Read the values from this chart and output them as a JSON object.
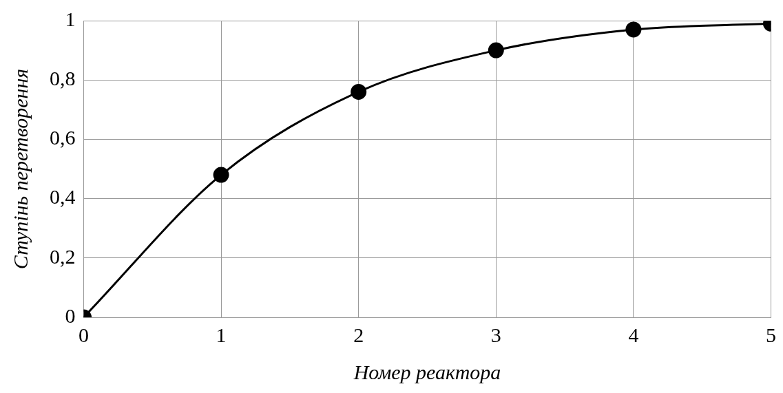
{
  "chart_data": {
    "type": "line",
    "xlabel": "Номер реактора",
    "ylabel": "Ступінь перетворення",
    "x": [
      0,
      1,
      2,
      3,
      4,
      5
    ],
    "series": [
      {
        "color": "#000000",
        "values": [
          0,
          0.48,
          0.76,
          0.9,
          0.97,
          0.99
        ]
      }
    ],
    "xlim": [
      0,
      5
    ],
    "xticks": [
      0,
      1,
      2,
      3,
      4,
      5
    ],
    "ylim": [
      0,
      1
    ],
    "yticks": [
      0,
      {
        "value": 0.2,
        "label": "0,2"
      },
      {
        "value": 0.4,
        "label": "0,4"
      },
      {
        "value": 0.6,
        "label": "0,6"
      },
      {
        "value": 0.8,
        "label": "0,8"
      },
      1
    ],
    "grid": true,
    "legend": false,
    "marker": "circle",
    "line_style": "solid"
  }
}
